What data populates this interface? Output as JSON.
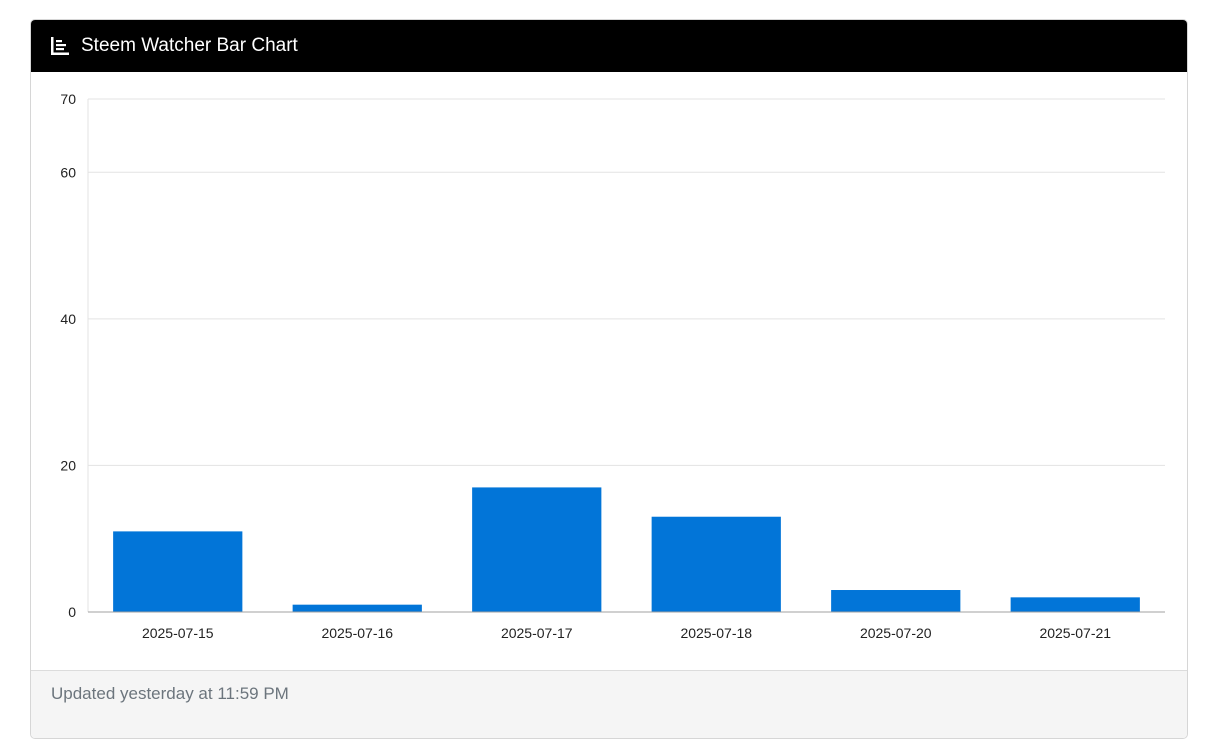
{
  "card": {
    "title": "Steem Watcher Bar Chart",
    "title_icon": "bar-chart-icon",
    "footer_text": "Updated yesterday at 11:59 PM"
  },
  "colors": {
    "header_bg": "#000000",
    "bar": "#0275d8",
    "grid": "#e3e3e3",
    "footer_bg": "#f5f5f5",
    "footer_text": "#6c757d"
  },
  "chart_data": {
    "type": "bar",
    "title": "",
    "xlabel": "",
    "ylabel": "",
    "categories": [
      "2025-07-15",
      "2025-07-16",
      "2025-07-17",
      "2025-07-18",
      "2025-07-20",
      "2025-07-21"
    ],
    "values": [
      11,
      1,
      17,
      13,
      3,
      2
    ],
    "y_ticks": [
      0,
      20,
      40,
      60,
      70
    ],
    "ylim": [
      0,
      70
    ],
    "grid": true,
    "legend": "none"
  }
}
